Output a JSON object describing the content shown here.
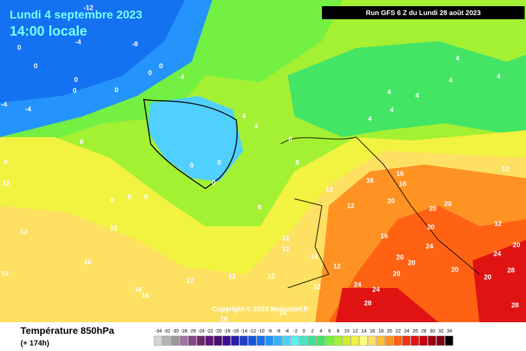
{
  "header": {
    "date": "Lundi 4 septembre 2023",
    "time": "14:00 locale",
    "run": "Run GFS 6 Z du Lundi 28 août 2023"
  },
  "copyright": "Copyright © 2023 Meteociel.fr",
  "footer": {
    "title": "Température 850hPa",
    "lead": "(+ 174h)"
  },
  "contour_labels": [
    -12,
    -4,
    -8,
    0,
    0,
    0,
    -4,
    -4,
    0,
    0,
    0,
    0,
    4,
    0,
    0,
    0,
    4,
    4,
    8,
    8,
    8,
    8,
    8,
    8,
    4,
    12,
    12,
    12,
    16,
    16,
    16,
    12,
    12,
    12,
    12,
    12,
    16,
    12,
    12,
    12,
    12,
    16,
    16,
    16,
    20,
    20,
    16,
    20,
    20,
    24,
    20,
    20,
    24,
    28,
    20,
    20,
    24,
    20,
    28,
    20,
    28,
    24,
    12,
    12,
    4,
    4,
    4,
    4,
    4,
    4,
    16,
    24,
    8,
    16,
    4
  ],
  "legend": [
    {
      "value": -34,
      "color": "#d4d4d4"
    },
    {
      "value": -32,
      "color": "#b4b4b4"
    },
    {
      "value": -30,
      "color": "#989898"
    },
    {
      "value": -28,
      "color": "#a274a2"
    },
    {
      "value": -26,
      "color": "#864686"
    },
    {
      "value": -24,
      "color": "#6a286a"
    },
    {
      "value": -22,
      "color": "#5e1478"
    },
    {
      "value": -20,
      "color": "#4a0e70"
    },
    {
      "value": -18,
      "color": "#3a0c96"
    },
    {
      "value": -16,
      "color": "#2a1eaa"
    },
    {
      "value": -14,
      "color": "#2040c4"
    },
    {
      "value": -12,
      "color": "#1454e0"
    },
    {
      "value": -10,
      "color": "#1472f2"
    },
    {
      "value": -8,
      "color": "#2494fc"
    },
    {
      "value": -6,
      "color": "#34b2fe"
    },
    {
      "value": -4,
      "color": "#50d0fe"
    },
    {
      "value": -2,
      "color": "#5ef0f0"
    },
    {
      "value": 0,
      "color": "#4ee2c2"
    },
    {
      "value": 2,
      "color": "#40e092"
    },
    {
      "value": 4,
      "color": "#44e464"
    },
    {
      "value": 6,
      "color": "#74f042"
    },
    {
      "value": 8,
      "color": "#a4f032"
    },
    {
      "value": 10,
      "color": "#d2f222"
    },
    {
      "value": 12,
      "color": "#f2f240"
    },
    {
      "value": 14,
      "color": "#fefe84"
    },
    {
      "value": 16,
      "color": "#fee062"
    },
    {
      "value": 18,
      "color": "#fec032"
    },
    {
      "value": 20,
      "color": "#fe9222"
    },
    {
      "value": 22,
      "color": "#fe6212"
    },
    {
      "value": 24,
      "color": "#f03212"
    },
    {
      "value": 26,
      "color": "#e01212"
    },
    {
      "value": 28,
      "color": "#c20012"
    },
    {
      "value": 30,
      "color": "#a20012"
    },
    {
      "value": 32,
      "color": "#820012"
    },
    {
      "value": 34,
      "color": "#000000"
    }
  ]
}
